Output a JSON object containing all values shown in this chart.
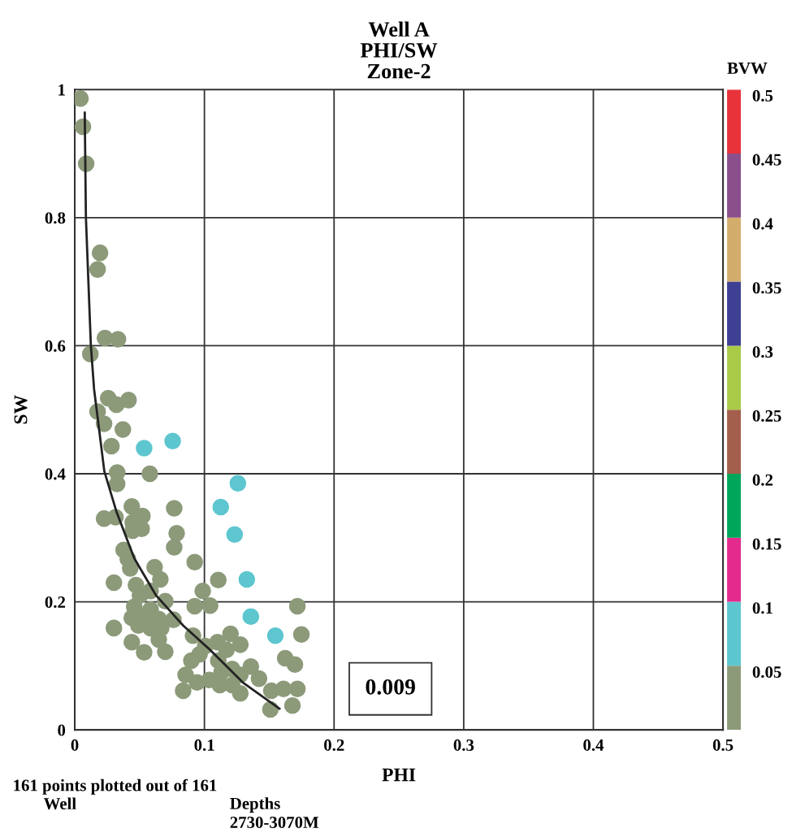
{
  "chart_data": {
    "type": "scatter",
    "title": "Well A\nPHI/SW\nZone-2",
    "xlabel": "PHI",
    "ylabel": "SW",
    "clabel": "BVW",
    "xlim": [
      0,
      0.5
    ],
    "xticks": [
      0,
      0.1,
      0.2,
      0.3,
      0.4,
      0.5
    ],
    "ylim": [
      0,
      1
    ],
    "yticks": [
      0,
      0.2,
      0.4,
      0.6,
      0.8,
      1
    ],
    "grid": true,
    "clim": [
      0,
      0.5
    ],
    "cticks": [
      0.05,
      0.1,
      0.15,
      0.2,
      0.25,
      0.3,
      0.35,
      0.4,
      0.45,
      0.5
    ],
    "colors": [
      "#8c9a7a",
      "#5dc6cf",
      "#e42a8d",
      "#00a65a",
      "#a45e4c",
      "#a9cb47",
      "#3e4193",
      "#d3ad6d",
      "#8b4f8c",
      "#e8333a"
    ],
    "annotations": [
      "0.009",
      "161 points plotted out of 161",
      "Well",
      "Depths\n2730-3070M"
    ],
    "series": [
      {
        "marker": "circle",
        "colors": [
          "#8c9a7a",
          "#8c9a7a",
          "#8c9a7a",
          "#8c9a7a",
          "#8c9a7a",
          "#8c9a7a",
          "#8c9a7a",
          "#8c9a7a",
          "#8c9a7a",
          "#8c9a7a",
          "#8c9a7a",
          "#8c9a7a",
          "#8c9a7a",
          "#8c9a7a",
          "#8c9a7a",
          "#5dc6cf",
          "#5dc6cf",
          "#8c9a7a",
          "#8c9a7a",
          "#8c9a7a",
          "#5dc6cf",
          "#8c9a7a",
          "#8c9a7a",
          "#8c9a7a",
          "#8c9a7a",
          "#8c9a7a",
          "#8c9a7a",
          "#8c9a7a",
          "#8c9a7a",
          "#8c9a7a",
          "#8c9a7a",
          "#5dc6cf",
          "#5dc6cf",
          "#8c9a7a",
          "#8c9a7a",
          "#8c9a7a",
          "#8c9a7a",
          "#8c9a7a",
          "#8c9a7a",
          "#8c9a7a",
          "#8c9a7a",
          "#8c9a7a",
          "#8c9a7a",
          "#8c9a7a",
          "#5dc6cf",
          "#8c9a7a",
          "#8c9a7a",
          "#8c9a7a",
          "#8c9a7a",
          "#8c9a7a",
          "#8c9a7a",
          "#8c9a7a",
          "#8c9a7a",
          "#8c9a7a",
          "#8c9a7a",
          "#8c9a7a",
          "#5dc6cf",
          "#8c9a7a",
          "#8c9a7a",
          "#8c9a7a",
          "#8c9a7a",
          "#5dc6cf",
          "#8c9a7a",
          "#8c9a7a",
          "#8c9a7a",
          "#8c9a7a",
          "#8c9a7a",
          "#8c9a7a",
          "#8c9a7a",
          "#8c9a7a",
          "#8c9a7a",
          "#8c9a7a",
          "#8c9a7a",
          "#8c9a7a",
          "#8c9a7a",
          "#8c9a7a",
          "#8c9a7a",
          "#8c9a7a",
          "#8c9a7a",
          "#8c9a7a",
          "#8c9a7a",
          "#8c9a7a",
          "#8c9a7a",
          "#8c9a7a",
          "#8c9a7a",
          "#8c9a7a",
          "#8c9a7a",
          "#8c9a7a",
          "#8c9a7a",
          "#8c9a7a",
          "#8c9a7a",
          "#8c9a7a",
          "#8c9a7a",
          "#8c9a7a",
          "#8c9a7a"
        ],
        "x": [
          0.0044,
          0.0063,
          0.0088,
          0.0195,
          0.0176,
          0.012,
          0.0233,
          0.0333,
          0.0258,
          0.0321,
          0.0415,
          0.0176,
          0.0226,
          0.0371,
          0.0283,
          0.0535,
          0.0755,
          0.0327,
          0.0327,
          0.0579,
          0.1258,
          0.044,
          0.0226,
          0.0314,
          0.0522,
          0.0447,
          0.0516,
          0.0447,
          0.0767,
          0.0786,
          0.0767,
          0.1126,
          0.1233,
          0.0925,
          0.0377,
          0.0409,
          0.0428,
          0.0616,
          0.066,
          0.0302,
          0.0472,
          0.0503,
          0.0585,
          0.1107,
          0.1327,
          0.0987,
          0.0698,
          0.0925,
          0.1044,
          0.0459,
          0.0585,
          0.044,
          0.0541,
          0.0648,
          0.0761,
          0.1717,
          0.1358,
          0.0302,
          0.0491,
          0.0585,
          0.0667,
          0.1547,
          0.1748,
          0.044,
          0.0535,
          0.0648,
          0.0698,
          0.0912,
          0.1006,
          0.1101,
          0.1201,
          0.117,
          0.1277,
          0.0962,
          0.0899,
          0.1107,
          0.1214,
          0.1358,
          0.1421,
          0.1623,
          0.1698,
          0.0855,
          0.0943,
          0.1038,
          0.1119,
          0.1214,
          0.1277,
          0.0836,
          0.1277,
          0.1516,
          0.161,
          0.1717,
          0.1509,
          0.1679,
          0.1132
        ],
        "values": [
          0.986,
          0.942,
          0.884,
          0.745,
          0.719,
          0.587,
          0.612,
          0.61,
          0.518,
          0.508,
          0.515,
          0.497,
          0.478,
          0.469,
          0.443,
          0.44,
          0.451,
          0.402,
          0.384,
          0.4,
          0.385,
          0.349,
          0.33,
          0.332,
          0.334,
          0.324,
          0.314,
          0.311,
          0.346,
          0.307,
          0.285,
          0.348,
          0.305,
          0.262,
          0.281,
          0.267,
          0.252,
          0.254,
          0.235,
          0.23,
          0.226,
          0.21,
          0.217,
          0.234,
          0.235,
          0.217,
          0.201,
          0.193,
          0.194,
          0.192,
          0.188,
          0.175,
          0.179,
          0.173,
          0.172,
          0.193,
          0.177,
          0.159,
          0.163,
          0.159,
          0.159,
          0.147,
          0.149,
          0.137,
          0.121,
          0.141,
          0.122,
          0.147,
          0.131,
          0.137,
          0.15,
          0.125,
          0.133,
          0.118,
          0.108,
          0.108,
          0.095,
          0.099,
          0.08,
          0.112,
          0.102,
          0.086,
          0.074,
          0.078,
          0.07,
          0.07,
          0.086,
          0.061,
          0.057,
          0.061,
          0.064,
          0.064,
          0.032,
          0.038,
          0.09
        ],
        "cvalues": [
          0.025,
          0.025,
          0.025,
          0.025,
          0.025,
          0.025,
          0.025,
          0.025,
          0.025,
          0.025,
          0.025,
          0.025,
          0.025,
          0.025,
          0.025,
          0.075,
          0.075,
          0.025,
          0.025,
          0.025,
          0.075,
          0.025,
          0.025,
          0.025,
          0.025,
          0.025,
          0.025,
          0.025,
          0.025,
          0.025,
          0.025,
          0.075,
          0.075,
          0.025,
          0.025,
          0.025,
          0.025,
          0.025,
          0.025,
          0.025,
          0.025,
          0.025,
          0.025,
          0.025,
          0.075,
          0.025,
          0.025,
          0.025,
          0.025,
          0.025,
          0.025,
          0.025,
          0.025,
          0.025,
          0.025,
          0.025,
          0.075,
          0.025,
          0.025,
          0.025,
          0.025,
          0.075,
          0.025,
          0.025,
          0.025,
          0.025,
          0.025,
          0.025,
          0.025,
          0.025,
          0.025,
          0.025,
          0.025,
          0.025,
          0.025,
          0.025,
          0.025,
          0.025,
          0.025,
          0.025,
          0.025,
          0.025,
          0.025,
          0.025,
          0.025,
          0.025,
          0.025,
          0.025,
          0.025,
          0.025,
          0.025,
          0.025,
          0.025,
          0.025,
          0.025
        ]
      },
      {
        "type": "line",
        "color": "#222222",
        "marker": "none",
        "line_style": "solid",
        "x": [
          0.0077,
          0.0086,
          0.0124,
          0.0149,
          0.0228,
          0.0321,
          0.0459,
          0.0627,
          0.0836,
          0.1044,
          0.1296,
          0.1579
        ],
        "values": [
          0.964,
          0.8,
          0.601,
          0.532,
          0.404,
          0.341,
          0.268,
          0.21,
          0.163,
          0.125,
          0.074,
          0.033
        ]
      }
    ]
  }
}
